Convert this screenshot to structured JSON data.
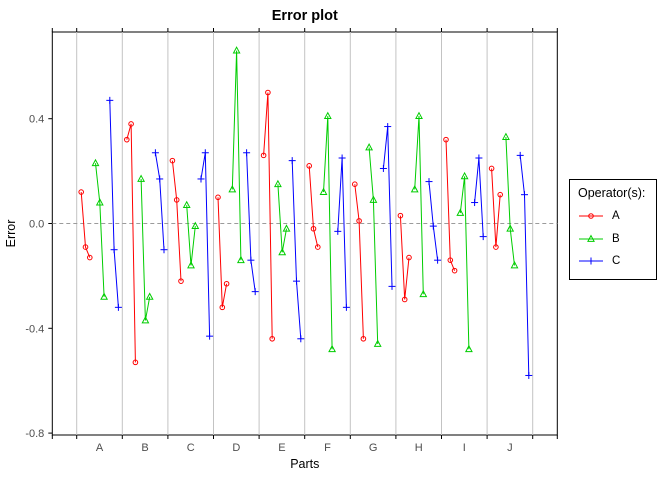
{
  "title": "Error plot",
  "chart_data": {
    "type": "line",
    "title": "Error plot",
    "xlabel": "Parts",
    "ylabel": "Error",
    "categories": [
      "A",
      "B",
      "C",
      "D",
      "E",
      "F",
      "G",
      "H",
      "I",
      "J"
    ],
    "trials_per_operator": 3,
    "yticks": [
      0.4,
      0.0,
      -0.4,
      -0.8
    ],
    "ytick_labels": [
      "0.4",
      "0.0",
      "-0.4",
      "-0.8"
    ],
    "ylim": [
      -0.81,
      0.73
    ],
    "grid": "vertical gray separators between parts; dashed gray line at y=0",
    "legend_position": "right",
    "zero_line": 0.0,
    "series": [
      {
        "name": "A",
        "marker": "circle",
        "color": "#FF0000",
        "values_by_part": [
          [
            0.12,
            -0.09,
            -0.13
          ],
          [
            0.32,
            0.38,
            -0.53
          ],
          [
            0.24,
            0.09,
            -0.22
          ],
          [
            0.1,
            -0.32,
            -0.23
          ],
          [
            0.26,
            0.5,
            -0.44
          ],
          [
            0.22,
            -0.02,
            -0.09
          ],
          [
            0.15,
            0.01,
            -0.44
          ],
          [
            0.03,
            -0.29,
            -0.13
          ],
          [
            0.32,
            -0.14,
            -0.18
          ],
          [
            0.21,
            -0.09,
            0.11
          ]
        ]
      },
      {
        "name": "B",
        "marker": "triangle",
        "color": "#00CD00",
        "values_by_part": [
          [
            0.23,
            0.08,
            -0.28
          ],
          [
            0.17,
            -0.37,
            -0.28
          ],
          [
            0.07,
            -0.16,
            -0.01
          ],
          [
            0.13,
            0.66,
            -0.14
          ],
          [
            0.15,
            -0.11,
            -0.02
          ],
          [
            0.12,
            0.41,
            -0.48
          ],
          [
            0.29,
            0.09,
            -0.46
          ],
          [
            0.13,
            0.41,
            -0.27
          ],
          [
            0.04,
            0.18,
            -0.48
          ],
          [
            0.33,
            -0.02,
            -0.16
          ]
        ]
      },
      {
        "name": "C",
        "marker": "plus",
        "color": "#0000FF",
        "values_by_part": [
          [
            0.47,
            -0.1,
            -0.32
          ],
          [
            0.27,
            0.17,
            -0.1
          ],
          [
            0.17,
            0.27,
            -0.43
          ],
          [
            0.27,
            -0.14,
            -0.26
          ],
          [
            0.24,
            -0.22,
            -0.44
          ],
          [
            -0.03,
            0.25,
            -0.32
          ],
          [
            0.21,
            0.37,
            -0.24
          ],
          [
            0.16,
            -0.01,
            -0.14
          ],
          [
            0.08,
            0.25,
            -0.05
          ],
          [
            0.26,
            0.11,
            -0.58
          ]
        ]
      }
    ]
  },
  "legend": {
    "title": "Operator(s):",
    "entries": [
      {
        "label": "A",
        "color": "#FF0000",
        "marker": "circle"
      },
      {
        "label": "B",
        "color": "#00CD00",
        "marker": "triangle"
      },
      {
        "label": "C",
        "color": "#0000FF",
        "marker": "plus"
      }
    ]
  },
  "style_colors": {
    "gridline": "#C3C3C3",
    "zero_line": "#9B9B9B",
    "panel_border": "#000000",
    "tick_label": "#4D4D4D",
    "axis_title": "#000000",
    "title": "#000000"
  }
}
